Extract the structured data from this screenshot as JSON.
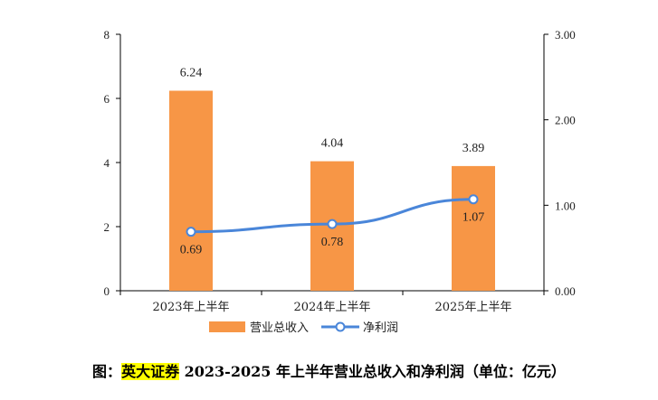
{
  "chart_data": {
    "type": "bar+line",
    "categories": [
      "2023年上半年",
      "2024年上半年",
      "2025年上半年"
    ],
    "series": [
      {
        "name": "营业总收入",
        "type": "bar",
        "axis": "left",
        "color": "#F79646",
        "values": [
          6.24,
          4.04,
          3.89
        ],
        "labels": [
          "6.24",
          "4.04",
          "3.89"
        ]
      },
      {
        "name": "净利润",
        "type": "line",
        "axis": "right",
        "color": "#4A86D9",
        "values": [
          0.69,
          0.78,
          1.07
        ],
        "labels": [
          "0.69",
          "0.78",
          "1.07"
        ]
      }
    ],
    "y_left": {
      "min": 0,
      "max": 8,
      "ticks": [
        "0",
        "2",
        "4",
        "6",
        "8"
      ]
    },
    "y_right": {
      "min": 0,
      "max": 3,
      "ticks": [
        "0.00",
        "1.00",
        "2.00",
        "3.00"
      ]
    },
    "legend_position": "bottom",
    "grid": false
  },
  "caption": {
    "prefix": "图：",
    "highlight": "英大证券",
    "rest": " 2023-2025 年上半年营业总收入和净利润（单位：亿元）"
  }
}
